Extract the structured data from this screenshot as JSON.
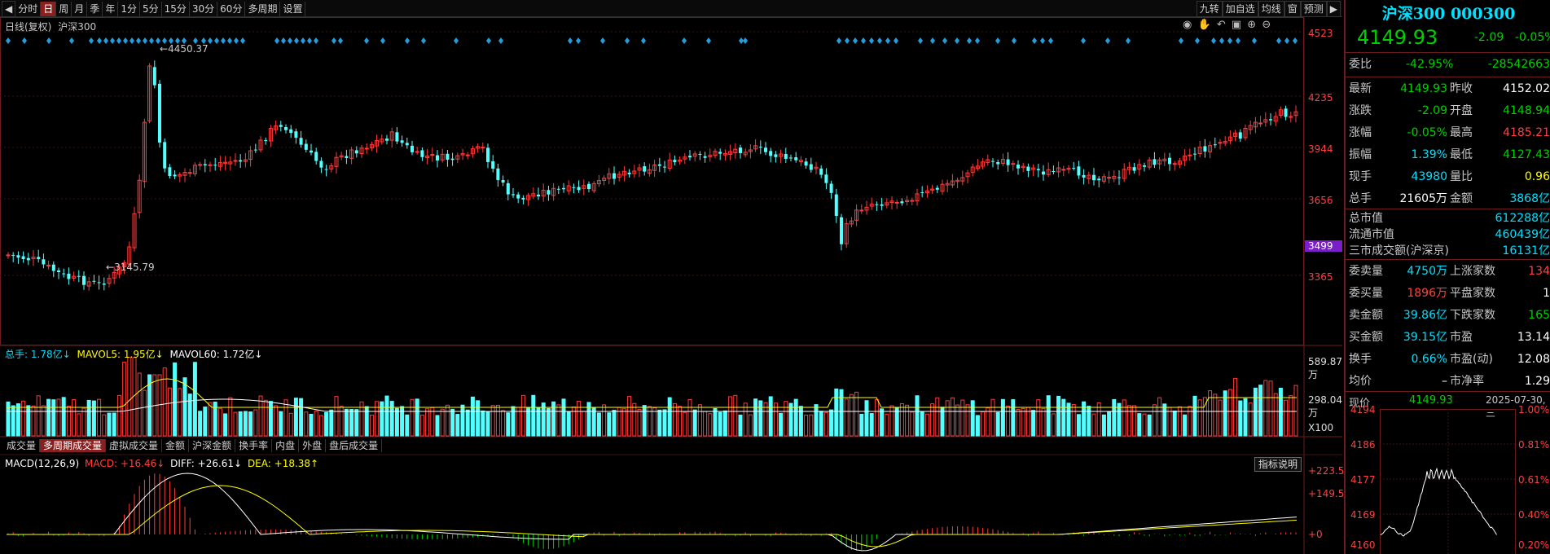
{
  "toolbar": {
    "periods": [
      "分时",
      "日",
      "周",
      "月",
      "季",
      "年",
      "1分",
      "5分",
      "15分",
      "30分",
      "60分",
      "多周期",
      "设置"
    ],
    "active_period": "日",
    "right_buttons": [
      "九转",
      "加自选",
      "均线",
      "窗",
      "预测"
    ]
  },
  "chart": {
    "header_left": "日线(复权)",
    "header_name": "沪深300",
    "price_axis": [
      "4523",
      "4235",
      "3944",
      "3656",
      "3499",
      "3365"
    ],
    "highlight_price": "3499",
    "high_label": "4450.37",
    "low_label": "3145.79",
    "colors": {
      "up": "#ff3b3b",
      "down": "#54ffff",
      "ma_white": "#ffffff",
      "ma_yellow": "#ffff00",
      "border": "#6b1c1c",
      "marker": "#1e9fe0",
      "highlight": "#7a1fc8"
    }
  },
  "volume": {
    "legend_label": "总手:",
    "legend_value": "1.78亿↓",
    "ma5_label": "MAVOL5:",
    "ma5_value": "1.95亿↓",
    "ma60_label": "MAVOL60:",
    "ma60_value": "1.72亿↓",
    "axis": [
      "589.87万",
      "298.04万"
    ],
    "unit": "X100",
    "tabs": [
      "成交量",
      "多周期成交量",
      "虚拟成交量",
      "金额",
      "沪深金额",
      "换手率",
      "内盘",
      "外盘",
      "盘后成交量"
    ],
    "active_tab": "多周期成交量"
  },
  "macd": {
    "label": "MACD(12,26,9)",
    "macd_label": "MACD:",
    "macd_value": "+16.46↓",
    "diff_label": "DIFF:",
    "diff_value": "+26.61↓",
    "dea_label": "DEA:",
    "dea_value": "+18.38↑",
    "help_button": "指标说明",
    "axis": [
      "+223.5",
      "+149.5",
      "+0"
    ]
  },
  "quote": {
    "title": "沪深300 000300",
    "price": "4149.93",
    "change": "-2.09",
    "change_pct": "-0.05%",
    "webi_label": "委比",
    "webi_value": "-42.95%",
    "webi_diff": "-28542663",
    "rows": [
      {
        "l1": "最新",
        "v1": "4149.93",
        "c1": "green",
        "l2": "昨收",
        "v2": "4152.02",
        "c2": "white"
      },
      {
        "l1": "涨跌",
        "v1": "-2.09",
        "c1": "green",
        "l2": "开盘",
        "v2": "4148.94",
        "c2": "green"
      },
      {
        "l1": "涨幅",
        "v1": "-0.05%",
        "c1": "green",
        "l2": "最高",
        "v2": "4185.21",
        "c2": "red"
      },
      {
        "l1": "振幅",
        "v1": "1.39%",
        "c1": "cyan",
        "l2": "最低",
        "v2": "4127.43",
        "c2": "green"
      },
      {
        "l1": "现手",
        "v1": "43980",
        "c1": "cyan",
        "l2": "量比",
        "v2": "0.96",
        "c2": "yellow"
      },
      {
        "l1": "总手",
        "v1": "21605万",
        "c1": "white",
        "l2": "金额",
        "v2": "3868亿",
        "c2": "cyan"
      }
    ],
    "mv_rows": [
      {
        "label": "总市值",
        "value": "612288亿"
      },
      {
        "label": "流通市值",
        "value": "460439亿"
      },
      {
        "label": "三市成交额(沪深京)",
        "value": "16131亿"
      }
    ],
    "order_rows": [
      {
        "l1": "委卖量",
        "v1": "4750万",
        "c1": "cyan",
        "l2": "上涨家数",
        "v2": "134",
        "c2": "red"
      },
      {
        "l1": "委买量",
        "v1": "1896万",
        "c1": "red",
        "l2": "平盘家数",
        "v2": "1",
        "c2": "white"
      },
      {
        "l1": "卖金额",
        "v1": "39.86亿",
        "c1": "cyan",
        "l2": "下跌家数",
        "v2": "165",
        "c2": "green"
      },
      {
        "l1": "买金额",
        "v1": "39.15亿",
        "c1": "cyan",
        "l2": "市盈",
        "v2": "13.14",
        "c2": "white"
      },
      {
        "l1": "换手",
        "v1": "0.66%",
        "c1": "cyan",
        "l2": "市盈(动)",
        "v2": "12.08",
        "c2": "white"
      },
      {
        "l1": "均价",
        "v1": "–",
        "c1": "white",
        "l2": "市净率",
        "v2": "1.29",
        "c2": "white"
      }
    ],
    "mini": {
      "now_label": "现价",
      "now_value": "4149.93",
      "date": "2025-07-30,三",
      "left_axis": [
        "4194",
        "4186",
        "4177",
        "4169",
        "4160"
      ],
      "right_axis": [
        "1.00%",
        "0.81%",
        "0.61%",
        "0.40%",
        "0.20%"
      ]
    }
  }
}
